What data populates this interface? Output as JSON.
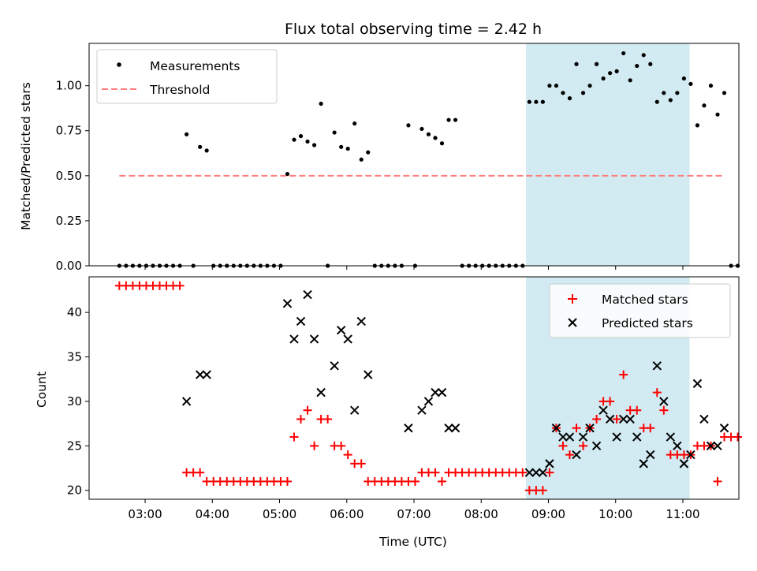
{
  "chart_data": [
    {
      "type": "scatter",
      "title": "Flux total observing time = 2.42 h",
      "xlabel": "",
      "ylabel": "Matched/Predicted stars",
      "ylim": [
        0,
        1.235
      ],
      "yticks": [
        0.0,
        0.25,
        0.5,
        0.75,
        1.0
      ],
      "ytick_labels": [
        "0.00",
        "0.25",
        "0.50",
        "0.75",
        "1.00"
      ],
      "xlim": [
        "02:10",
        "11:50"
      ],
      "shaded_span": [
        "08:40",
        "11:06"
      ],
      "shade_color": "#add8e6",
      "legend_position": "upper-left",
      "series": [
        {
          "name": "Measurements",
          "color": "#000000",
          "marker": "dot",
          "points": [
            [
              "02:37",
              0
            ],
            [
              "02:43",
              0
            ],
            [
              "02:49",
              0
            ],
            [
              "02:55",
              0
            ],
            [
              "03:01",
              0
            ],
            [
              "03:07",
              0
            ],
            [
              "03:13",
              0
            ],
            [
              "03:19",
              0
            ],
            [
              "03:25",
              0
            ],
            [
              "03:31",
              0
            ],
            [
              "03:37",
              0.73
            ],
            [
              "03:43",
              0
            ],
            [
              "03:49",
              0.66
            ],
            [
              "03:55",
              0.64
            ],
            [
              "04:01",
              0
            ],
            [
              "04:07",
              0
            ],
            [
              "04:13",
              0
            ],
            [
              "04:19",
              0
            ],
            [
              "04:25",
              0
            ],
            [
              "04:31",
              0
            ],
            [
              "04:37",
              0
            ],
            [
              "04:43",
              0
            ],
            [
              "04:49",
              0
            ],
            [
              "04:55",
              0
            ],
            [
              "05:01",
              0
            ],
            [
              "05:07",
              0.51
            ],
            [
              "05:13",
              0.7
            ],
            [
              "05:19",
              0.72
            ],
            [
              "05:25",
              0.69
            ],
            [
              "05:31",
              0.67
            ],
            [
              "05:37",
              0.9
            ],
            [
              "05:43",
              0
            ],
            [
              "05:49",
              0.74
            ],
            [
              "05:55",
              0.66
            ],
            [
              "06:01",
              0.65
            ],
            [
              "06:07",
              0.79
            ],
            [
              "06:13",
              0.59
            ],
            [
              "06:19",
              0.63
            ],
            [
              "06:25",
              0
            ],
            [
              "06:31",
              0
            ],
            [
              "06:37",
              0
            ],
            [
              "06:43",
              0
            ],
            [
              "06:49",
              0
            ],
            [
              "06:55",
              0.78
            ],
            [
              "07:01",
              0
            ],
            [
              "07:07",
              0.76
            ],
            [
              "07:13",
              0.73
            ],
            [
              "07:19",
              0.71
            ],
            [
              "07:25",
              0.68
            ],
            [
              "07:31",
              0.81
            ],
            [
              "07:37",
              0.81
            ],
            [
              "07:43",
              0
            ],
            [
              "07:49",
              0
            ],
            [
              "07:55",
              0
            ],
            [
              "08:01",
              0
            ],
            [
              "08:07",
              0
            ],
            [
              "08:13",
              0
            ],
            [
              "08:19",
              0
            ],
            [
              "08:25",
              0
            ],
            [
              "08:31",
              0
            ],
            [
              "08:37",
              0
            ],
            [
              "08:43",
              0.91
            ],
            [
              "08:49",
              0.91
            ],
            [
              "08:55",
              0.91
            ],
            [
              "09:01",
              1.0
            ],
            [
              "09:07",
              1.0
            ],
            [
              "09:13",
              0.96
            ],
            [
              "09:19",
              0.93
            ],
            [
              "09:25",
              1.12
            ],
            [
              "09:31",
              0.96
            ],
            [
              "09:37",
              1.0
            ],
            [
              "09:43",
              1.12
            ],
            [
              "09:49",
              1.04
            ],
            [
              "09:55",
              1.07
            ],
            [
              "10:01",
              1.08
            ],
            [
              "10:07",
              1.18
            ],
            [
              "10:13",
              1.03
            ],
            [
              "10:19",
              1.11
            ],
            [
              "10:25",
              1.17
            ],
            [
              "10:31",
              1.12
            ],
            [
              "10:37",
              0.91
            ],
            [
              "10:43",
              0.96
            ],
            [
              "10:49",
              0.92
            ],
            [
              "10:55",
              0.96
            ],
            [
              "11:01",
              1.04
            ],
            [
              "11:07",
              1.01
            ],
            [
              "11:13",
              0.78
            ],
            [
              "11:19",
              0.89
            ],
            [
              "11:25",
              1.0
            ],
            [
              "11:31",
              0.84
            ],
            [
              "11:37",
              0.96
            ],
            [
              "11:43",
              0
            ],
            [
              "11:49",
              0
            ]
          ]
        },
        {
          "name": "Threshold",
          "color": "#ff7f7f",
          "style": "dashed",
          "y": 0.5,
          "x_range": [
            "02:37",
            "11:37"
          ]
        }
      ]
    },
    {
      "type": "scatter",
      "title": "",
      "xlabel": "Time (UTC)",
      "ylabel": "Count",
      "ylim": [
        19,
        44
      ],
      "yticks": [
        20,
        25,
        30,
        35,
        40
      ],
      "ytick_labels": [
        "20",
        "25",
        "30",
        "35",
        "40"
      ],
      "xlim": [
        "02:10",
        "11:50"
      ],
      "xticks": [
        "03:00",
        "04:00",
        "05:00",
        "06:00",
        "07:00",
        "08:00",
        "09:00",
        "10:00",
        "11:00"
      ],
      "shaded_span": [
        "08:40",
        "11:06"
      ],
      "shade_color": "#add8e6",
      "legend_position": "upper-right",
      "series": [
        {
          "name": "Matched stars",
          "color": "#ff0000",
          "marker": "plus",
          "points": [
            [
              "02:37",
              43
            ],
            [
              "02:43",
              43
            ],
            [
              "02:49",
              43
            ],
            [
              "02:55",
              43
            ],
            [
              "03:01",
              43
            ],
            [
              "03:07",
              43
            ],
            [
              "03:13",
              43
            ],
            [
              "03:19",
              43
            ],
            [
              "03:25",
              43
            ],
            [
              "03:31",
              43
            ],
            [
              "03:37",
              22
            ],
            [
              "03:43",
              22
            ],
            [
              "03:49",
              22
            ],
            [
              "03:55",
              21
            ],
            [
              "04:01",
              21
            ],
            [
              "04:07",
              21
            ],
            [
              "04:13",
              21
            ],
            [
              "04:19",
              21
            ],
            [
              "04:25",
              21
            ],
            [
              "04:31",
              21
            ],
            [
              "04:37",
              21
            ],
            [
              "04:43",
              21
            ],
            [
              "04:49",
              21
            ],
            [
              "04:55",
              21
            ],
            [
              "05:01",
              21
            ],
            [
              "05:07",
              21
            ],
            [
              "05:13",
              26
            ],
            [
              "05:19",
              28
            ],
            [
              "05:25",
              29
            ],
            [
              "05:31",
              25
            ],
            [
              "05:37",
              28
            ],
            [
              "05:43",
              28
            ],
            [
              "05:49",
              25
            ],
            [
              "05:55",
              25
            ],
            [
              "06:01",
              24
            ],
            [
              "06:07",
              23
            ],
            [
              "06:13",
              23
            ],
            [
              "06:19",
              21
            ],
            [
              "06:25",
              21
            ],
            [
              "06:31",
              21
            ],
            [
              "06:37",
              21
            ],
            [
              "06:43",
              21
            ],
            [
              "06:49",
              21
            ],
            [
              "06:55",
              21
            ],
            [
              "07:01",
              21
            ],
            [
              "07:07",
              22
            ],
            [
              "07:13",
              22
            ],
            [
              "07:19",
              22
            ],
            [
              "07:25",
              21
            ],
            [
              "07:31",
              22
            ],
            [
              "07:37",
              22
            ],
            [
              "07:43",
              22
            ],
            [
              "07:49",
              22
            ],
            [
              "07:55",
              22
            ],
            [
              "08:01",
              22
            ],
            [
              "08:07",
              22
            ],
            [
              "08:13",
              22
            ],
            [
              "08:19",
              22
            ],
            [
              "08:25",
              22
            ],
            [
              "08:31",
              22
            ],
            [
              "08:37",
              22
            ],
            [
              "08:43",
              20
            ],
            [
              "08:49",
              20
            ],
            [
              "08:55",
              20
            ],
            [
              "09:01",
              22
            ],
            [
              "09:07",
              27
            ],
            [
              "09:13",
              25
            ],
            [
              "09:19",
              24
            ],
            [
              "09:25",
              27
            ],
            [
              "09:31",
              25
            ],
            [
              "09:37",
              27
            ],
            [
              "09:43",
              28
            ],
            [
              "09:49",
              30
            ],
            [
              "09:55",
              30
            ],
            [
              "10:01",
              28
            ],
            [
              "10:07",
              33
            ],
            [
              "10:13",
              29
            ],
            [
              "10:19",
              29
            ],
            [
              "10:25",
              27
            ],
            [
              "10:31",
              27
            ],
            [
              "10:37",
              31
            ],
            [
              "10:43",
              29
            ],
            [
              "10:49",
              24
            ],
            [
              "10:55",
              24
            ],
            [
              "11:01",
              24
            ],
            [
              "11:07",
              24
            ],
            [
              "11:13",
              25
            ],
            [
              "11:19",
              25
            ],
            [
              "11:25",
              25
            ],
            [
              "11:31",
              21
            ],
            [
              "11:37",
              26
            ],
            [
              "11:43",
              26
            ],
            [
              "11:49",
              26
            ]
          ]
        },
        {
          "name": "Predicted stars",
          "color": "#000000",
          "marker": "x",
          "points": [
            [
              "03:37",
              30
            ],
            [
              "03:49",
              33
            ],
            [
              "03:55",
              33
            ],
            [
              "05:07",
              41
            ],
            [
              "05:13",
              37
            ],
            [
              "05:19",
              39
            ],
            [
              "05:25",
              42
            ],
            [
              "05:31",
              37
            ],
            [
              "05:37",
              31
            ],
            [
              "05:49",
              34
            ],
            [
              "05:55",
              38
            ],
            [
              "06:01",
              37
            ],
            [
              "06:07",
              29
            ],
            [
              "06:13",
              39
            ],
            [
              "06:19",
              33
            ],
            [
              "06:55",
              27
            ],
            [
              "07:07",
              29
            ],
            [
              "07:13",
              30
            ],
            [
              "07:19",
              31
            ],
            [
              "07:25",
              31
            ],
            [
              "07:31",
              27
            ],
            [
              "07:37",
              27
            ],
            [
              "08:43",
              22
            ],
            [
              "08:49",
              22
            ],
            [
              "08:55",
              22
            ],
            [
              "09:01",
              23
            ],
            [
              "09:07",
              27
            ],
            [
              "09:13",
              26
            ],
            [
              "09:19",
              26
            ],
            [
              "09:25",
              24
            ],
            [
              "09:31",
              26
            ],
            [
              "09:37",
              27
            ],
            [
              "09:43",
              25
            ],
            [
              "09:49",
              29
            ],
            [
              "09:55",
              28
            ],
            [
              "10:01",
              26
            ],
            [
              "10:07",
              28
            ],
            [
              "10:13",
              28
            ],
            [
              "10:19",
              26
            ],
            [
              "10:25",
              23
            ],
            [
              "10:31",
              24
            ],
            [
              "10:37",
              34
            ],
            [
              "10:43",
              30
            ],
            [
              "10:49",
              26
            ],
            [
              "10:55",
              25
            ],
            [
              "11:01",
              23
            ],
            [
              "11:07",
              24
            ],
            [
              "11:13",
              32
            ],
            [
              "11:19",
              28
            ],
            [
              "11:25",
              25
            ],
            [
              "11:31",
              25
            ],
            [
              "11:37",
              27
            ]
          ]
        }
      ]
    }
  ]
}
